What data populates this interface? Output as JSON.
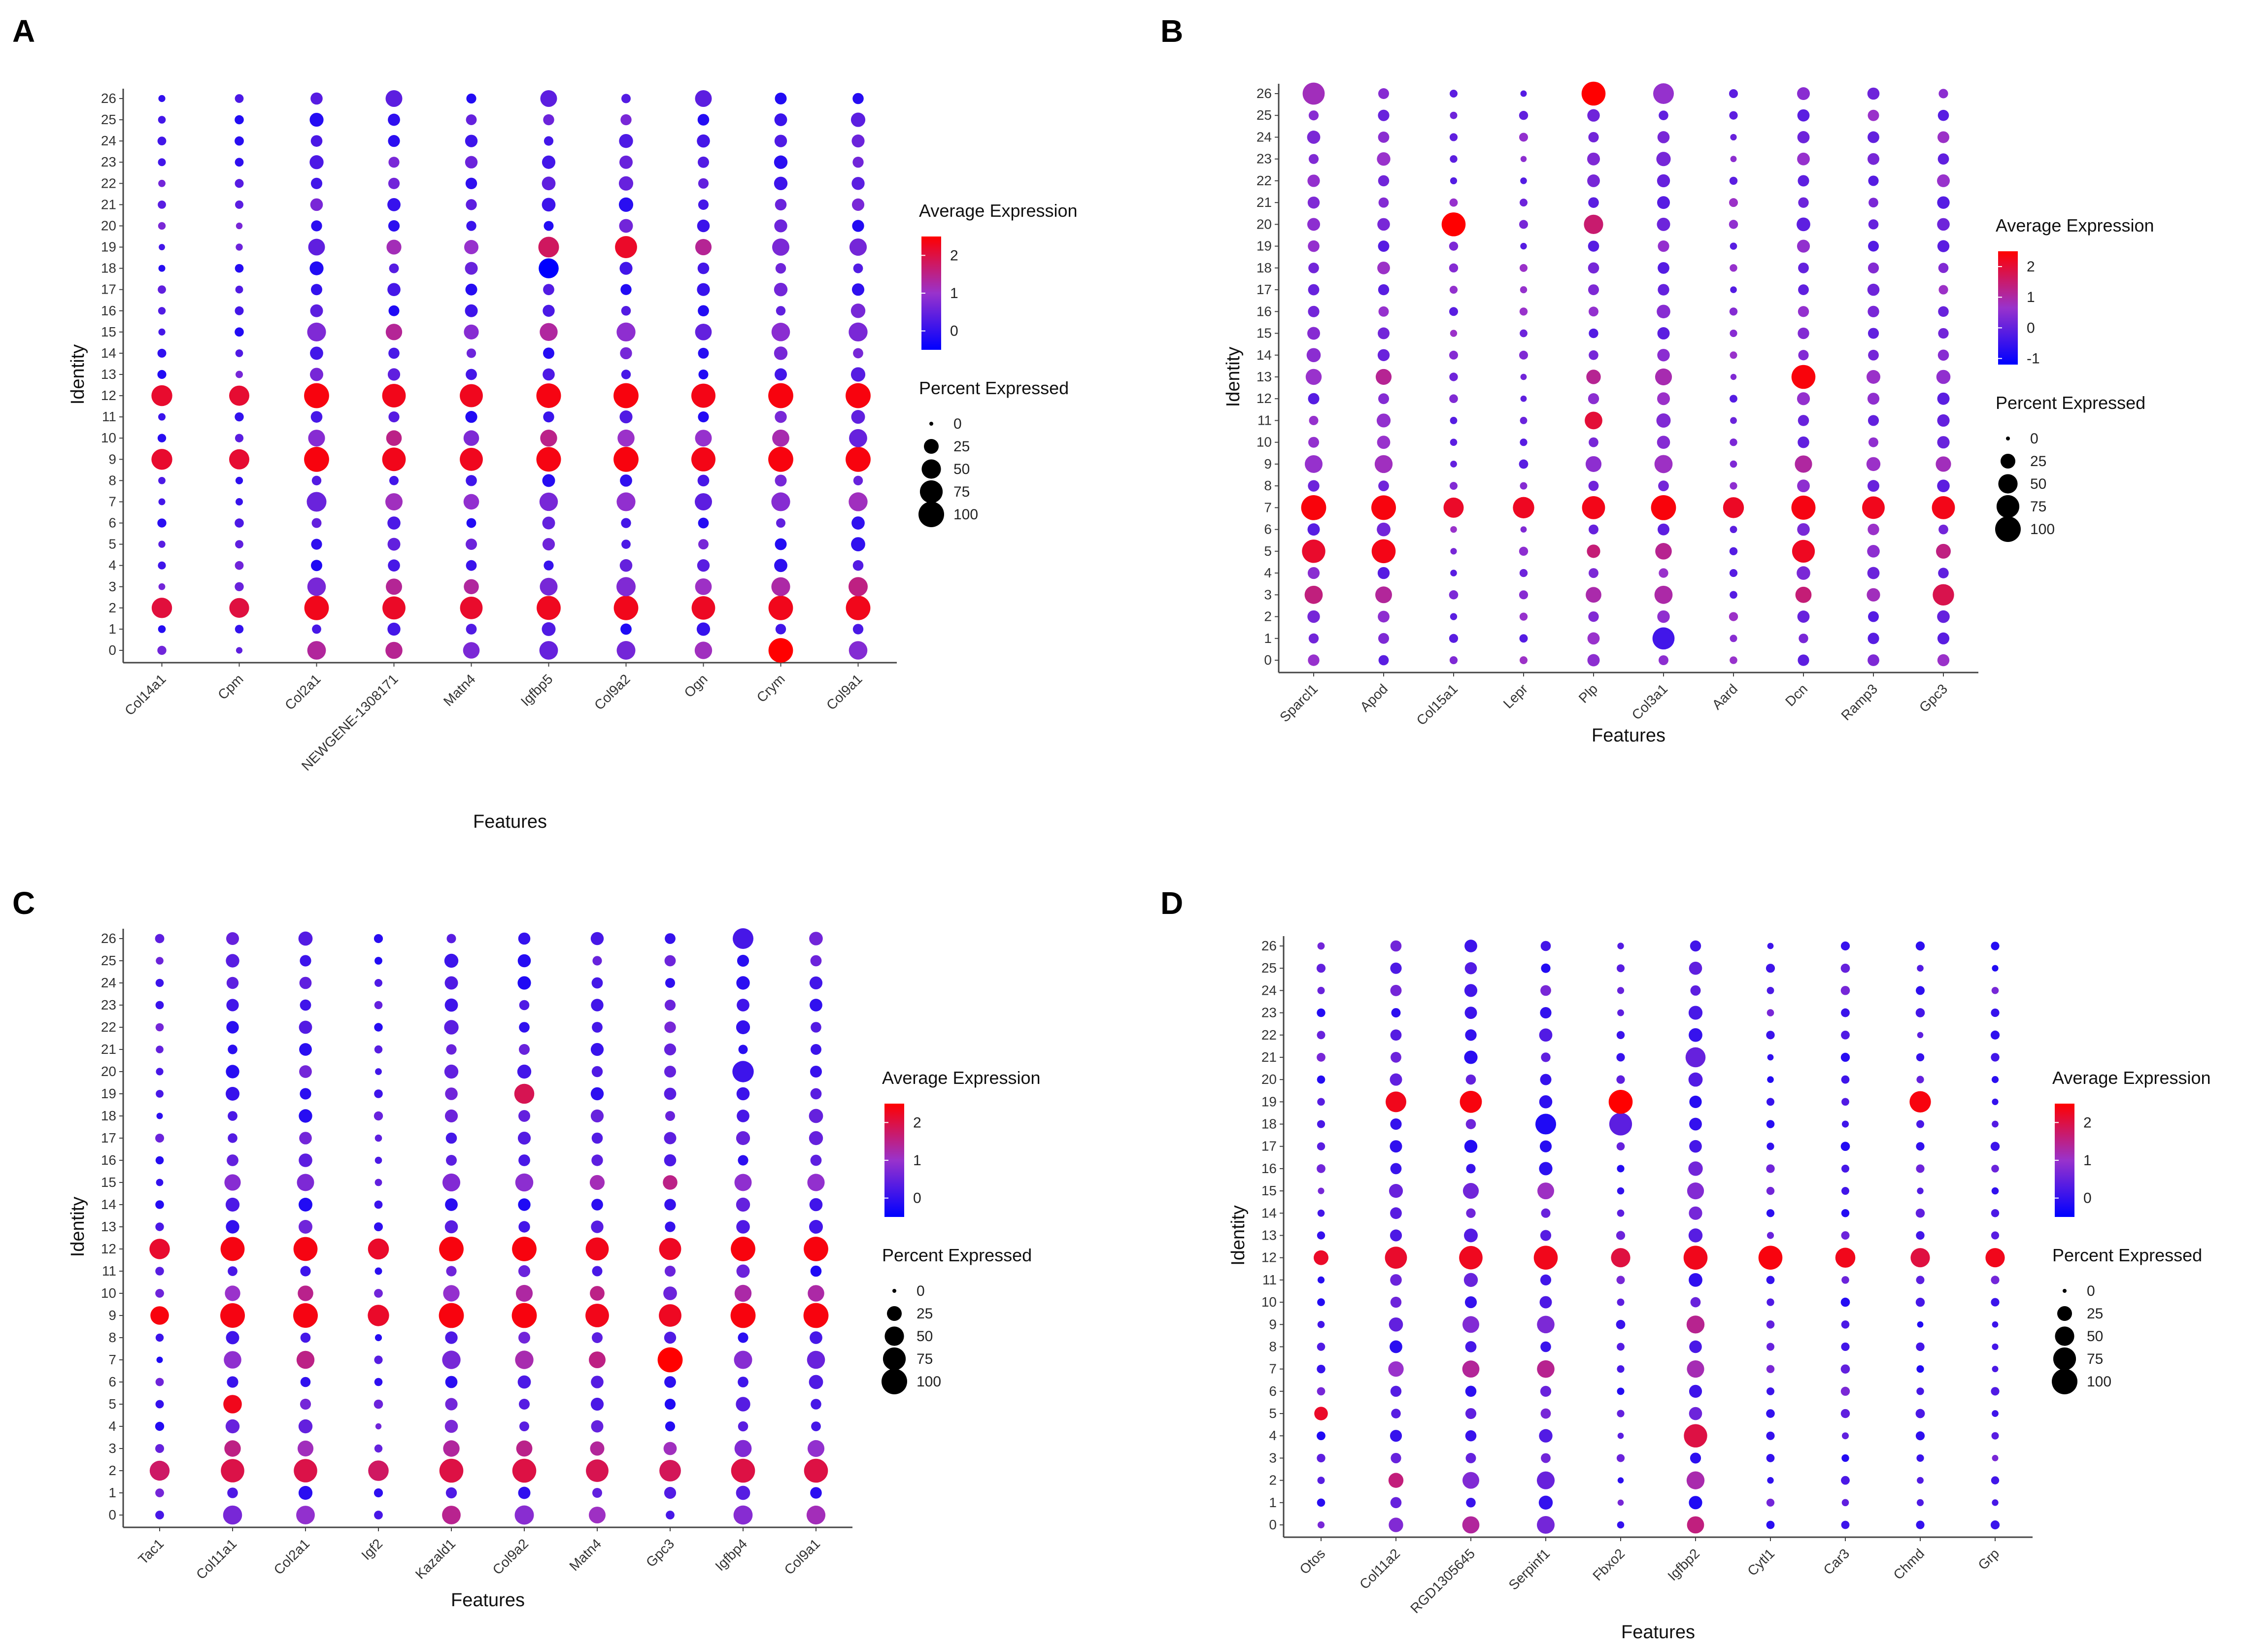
{
  "figure": {
    "legend_color_title": "Average Expression",
    "legend_size_title": "Percent Expressed",
    "size_legend_values": [
      "0",
      "25",
      "50",
      "75",
      "100"
    ],
    "color_low": "#0000FF",
    "color_mid": "#9932CC",
    "color_high": "#FF0000"
  },
  "chart_data": [
    {
      "panel": "A",
      "type": "dotplot",
      "xlabel": "Features",
      "ylabel": "Identity",
      "identities": [
        "0",
        "1",
        "2",
        "3",
        "4",
        "5",
        "6",
        "7",
        "8",
        "9",
        "10",
        "11",
        "12",
        "13",
        "14",
        "15",
        "16",
        "17",
        "18",
        "19",
        "20",
        "21",
        "22",
        "23",
        "24",
        "25",
        "26"
      ],
      "features": [
        "Col14a1",
        "Cpm",
        "Col2a1",
        "NEWGENE-1308171",
        "Matn4",
        "Igfbp5",
        "Col9a2",
        "Ogn",
        "Crym",
        "Col9a1"
      ],
      "color_ticks": [
        "2",
        "1",
        "0"
      ],
      "color_range": [
        -0.5,
        2.5
      ],
      "high_expr": {
        "12": 2.4,
        "9": 2.4,
        "2": 2.3
      },
      "high_pct": {
        "12": 95,
        "9": 95,
        "2": 90
      },
      "stripe": {
        "15": 40,
        "7": 45,
        "3": 42,
        "10": 35,
        "19": 35,
        "0": 45
      },
      "feature_boost": [
        0.2,
        0.1,
        1.0,
        0.7,
        0.6,
        0.9,
        1.0,
        0.8,
        1.0,
        1.0
      ],
      "specials": [
        {
          "f": 5,
          "i": "18",
          "e": -0.6,
          "p": 55
        },
        {
          "f": 5,
          "i": "19",
          "e": 1.8,
          "p": 60
        },
        {
          "f": 6,
          "i": "19",
          "e": 2.2,
          "p": 70
        },
        {
          "f": 3,
          "i": "26",
          "e": 0.4,
          "p": 35
        },
        {
          "f": 5,
          "i": "26",
          "e": 0.4,
          "p": 35
        },
        {
          "f": 7,
          "i": "26",
          "e": 0.4,
          "p": 35
        },
        {
          "f": 8,
          "i": "0",
          "e": 2.5,
          "p": 90
        }
      ]
    },
    {
      "panel": "B",
      "type": "dotplot",
      "xlabel": "Features",
      "ylabel": "Identity",
      "identities": [
        "0",
        "1",
        "2",
        "3",
        "4",
        "5",
        "6",
        "7",
        "8",
        "9",
        "10",
        "11",
        "12",
        "13",
        "14",
        "15",
        "16",
        "17",
        "18",
        "19",
        "20",
        "21",
        "22",
        "23",
        "24",
        "25",
        "26"
      ],
      "features": [
        "Sparcl1",
        "Apod",
        "Col15a1",
        "Lepr",
        "Plp",
        "Col3a1",
        "Aard",
        "Dcn",
        "Ramp3",
        "Gpc3"
      ],
      "color_ticks": [
        "2",
        "1",
        "0",
        "-1"
      ],
      "color_range": [
        -1.2,
        2.5
      ],
      "high_expr": {
        "7": 2.4
      },
      "high_pct": {
        "7": 95
      },
      "stripe": {
        "9": 40,
        "3": 38,
        "5": 30,
        "13": 30
      },
      "feature_boost": [
        1.0,
        0.9,
        0.1,
        0.3,
        0.6,
        1.0,
        0.2,
        0.8,
        0.5,
        0.6
      ],
      "specials": [
        {
          "f": 2,
          "i": "20",
          "e": 2.5,
          "p": 85
        },
        {
          "f": 4,
          "i": "26",
          "e": 2.5,
          "p": 85
        },
        {
          "f": 4,
          "i": "20",
          "e": 1.5,
          "p": 50
        },
        {
          "f": 4,
          "i": "11",
          "e": 2.0,
          "p": 40
        },
        {
          "f": 7,
          "i": "13",
          "e": 2.4,
          "p": 85
        },
        {
          "f": 7,
          "i": "5",
          "e": 2.2,
          "p": 75
        },
        {
          "f": 1,
          "i": "5",
          "e": 2.3,
          "p": 85
        },
        {
          "f": 0,
          "i": "5",
          "e": 2.1,
          "p": 80
        },
        {
          "f": 0,
          "i": "26",
          "e": 0.8,
          "p": 70
        },
        {
          "f": 5,
          "i": "26",
          "e": 0.6,
          "p": 60
        },
        {
          "f": 5,
          "i": "1",
          "e": -0.4,
          "p": 70
        },
        {
          "f": 9,
          "i": "3",
          "e": 1.8,
          "p": 65
        }
      ]
    },
    {
      "panel": "C",
      "type": "dotplot",
      "xlabel": "Features",
      "ylabel": "Identity",
      "identities": [
        "0",
        "1",
        "2",
        "3",
        "4",
        "5",
        "6",
        "7",
        "8",
        "9",
        "10",
        "11",
        "12",
        "13",
        "14",
        "15",
        "16",
        "17",
        "18",
        "19",
        "20",
        "21",
        "22",
        "23",
        "24",
        "25",
        "26"
      ],
      "features": [
        "Tac1",
        "Col11a1",
        "Col2a1",
        "Igf2",
        "Kazald1",
        "Col9a2",
        "Matn4",
        "Gpc3",
        "Igfbp4",
        "Col9a1"
      ],
      "color_ticks": [
        "2",
        "1",
        "0"
      ],
      "color_range": [
        -0.5,
        2.5
      ],
      "high_expr": {
        "9": 2.4,
        "12": 2.4,
        "2": 2.0
      },
      "high_pct": {
        "9": 95,
        "12": 90,
        "2": 85
      },
      "stripe": {
        "7": 40,
        "15": 35,
        "0": 45,
        "3": 30,
        "10": 30
      },
      "feature_boost": [
        0.2,
        0.9,
        0.9,
        0.3,
        1.0,
        1.0,
        0.7,
        0.5,
        1.0,
        1.0
      ],
      "specials": [
        {
          "f": 0,
          "i": "9",
          "e": 2.4,
          "p": 45
        },
        {
          "f": 7,
          "i": "7",
          "e": 2.5,
          "p": 95
        },
        {
          "f": 8,
          "i": "26",
          "e": 0.2,
          "p": 60
        },
        {
          "f": 8,
          "i": "20",
          "e": 0.1,
          "p": 65
        },
        {
          "f": 1,
          "i": "5",
          "e": 2.3,
          "p": 45
        },
        {
          "f": 5,
          "i": "19",
          "e": 1.9,
          "p": 55
        },
        {
          "f": 0,
          "i": "0",
          "e": 0.2,
          "p": 5
        },
        {
          "f": 3,
          "i": "0",
          "e": 0.2,
          "p": 5
        },
        {
          "f": 7,
          "i": "0",
          "e": 0.2,
          "p": 5
        }
      ]
    },
    {
      "panel": "D",
      "type": "dotplot",
      "xlabel": "Features",
      "ylabel": "Identity",
      "identities": [
        "0",
        "1",
        "2",
        "3",
        "4",
        "5",
        "6",
        "7",
        "8",
        "9",
        "10",
        "11",
        "12",
        "13",
        "14",
        "15",
        "16",
        "17",
        "18",
        "19",
        "20",
        "21",
        "22",
        "23",
        "24",
        "25",
        "26"
      ],
      "features": [
        "Otos",
        "Col11a2",
        "RGD1305645",
        "Serpinf1",
        "Fbxo2",
        "Igfbp2",
        "Cytl1",
        "Car3",
        "Chmd",
        "Grp"
      ],
      "color_ticks": [
        "2",
        "1",
        "0"
      ],
      "color_range": [
        -0.5,
        2.5
      ],
      "high_expr": {
        "12": 2.3
      },
      "high_pct": {
        "12": 85
      },
      "stripe": {
        "9": 35,
        "7": 35,
        "2": 35,
        "0": 35,
        "15": 30
      },
      "feature_boost": [
        0.1,
        0.6,
        0.9,
        1.0,
        0.1,
        1.0,
        0.1,
        0.0,
        0.1,
        0.0
      ],
      "specials": [
        {
          "f": 1,
          "i": "19",
          "e": 2.3,
          "p": 60
        },
        {
          "f": 2,
          "i": "19",
          "e": 2.4,
          "p": 70
        },
        {
          "f": 4,
          "i": "19",
          "e": 2.5,
          "p": 85
        },
        {
          "f": 4,
          "i": "18",
          "e": 0.4,
          "p": 75
        },
        {
          "f": 3,
          "i": "18",
          "e": -0.2,
          "p": 60
        },
        {
          "f": 8,
          "i": "19",
          "e": 2.4,
          "p": 65
        },
        {
          "f": 0,
          "i": "5",
          "e": 2.2,
          "p": 20
        },
        {
          "f": 5,
          "i": "4",
          "e": 2.0,
          "p": 80
        },
        {
          "f": 5,
          "i": "21",
          "e": 0.5,
          "p": 55
        },
        {
          "f": 7,
          "i": "12",
          "e": 2.3,
          "p": 55
        },
        {
          "f": 9,
          "i": "12",
          "e": 2.3,
          "p": 50
        },
        {
          "f": 6,
          "i": "12",
          "e": 2.4,
          "p": 85
        },
        {
          "f": 0,
          "i": "12",
          "e": 2.2,
          "p": 25
        }
      ]
    }
  ]
}
